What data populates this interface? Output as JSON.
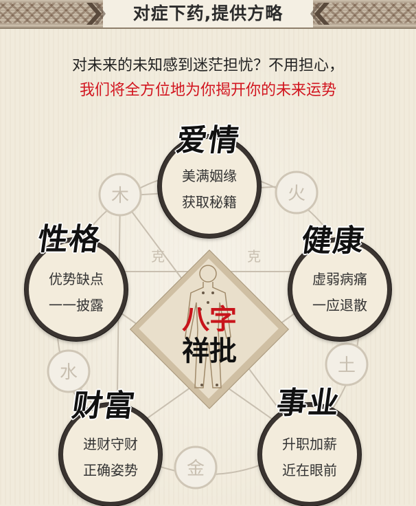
{
  "header": {
    "title": "对症下药,提供方略"
  },
  "intro": {
    "line1": "对未来的未知感到迷茫担忧？不用担心，",
    "line2": "我们将全方位地为你揭开你的未来运势"
  },
  "center": {
    "title_red": "八字",
    "title_black": "祥批"
  },
  "background_glyphs": {
    "wood": "木",
    "fire": "火",
    "earth": "土",
    "metal": "金",
    "water": "水",
    "ke1": "克",
    "ke2": "克"
  },
  "sections": {
    "love": {
      "title": "爱情",
      "line1": "美满姻缘",
      "line2": "获取秘籍"
    },
    "health": {
      "title": "健康",
      "line1": "虚弱病痛",
      "line2": "一应退散"
    },
    "career": {
      "title": "事业",
      "line1": "升职加薪",
      "line2": "近在眼前"
    },
    "wealth": {
      "title": "财富",
      "line1": "进财守财",
      "line2": "正确姿势"
    },
    "personality": {
      "title": "性格",
      "line1": "优势缺点",
      "line2": "一一披露"
    }
  },
  "colors": {
    "accent_red": "#d2151f",
    "circle_border": "#3a3430",
    "paper": "#f1ebdc"
  }
}
